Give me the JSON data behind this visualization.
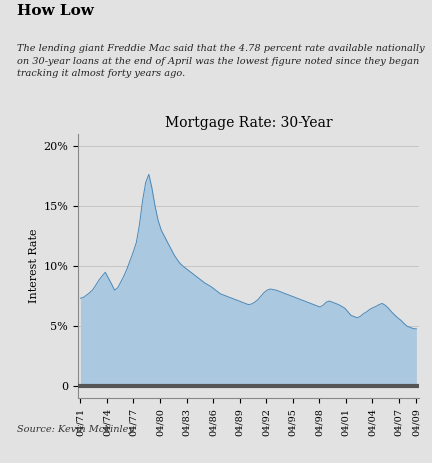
{
  "title": "Mortgage Rate: 30-Year",
  "headline": "How Low",
  "subtitle": "The lending giant Freddie Mac said that the 4.78 percent rate available nationally\non 30-year loans at the end of April was the lowest figure noted since they began\ntracking it almost forty years ago.",
  "source": "Source: Kevin Mckinley",
  "ylabel": "Interest Rate",
  "yticks": [
    0,
    5,
    10,
    15,
    20
  ],
  "ytick_labels": [
    "0",
    "5%",
    "10%",
    "15%",
    "20%"
  ],
  "xtick_labels": [
    "04/71",
    "04/74",
    "04/77",
    "04/80",
    "04/83",
    "04/86",
    "04/89",
    "04/92",
    "04/95",
    "04/98",
    "04/01",
    "04/04",
    "04/07",
    "04/09"
  ],
  "xtick_years": [
    1971,
    1974,
    1977,
    1980,
    1983,
    1986,
    1989,
    1992,
    1995,
    1998,
    2001,
    2004,
    2007,
    2009
  ],
  "background_color": "#e2e2e2",
  "fill_color": "#aac8e0",
  "line_color": "#4a88b8",
  "data": [
    7.33,
    7.41,
    7.6,
    7.8,
    8.05,
    8.45,
    8.86,
    9.19,
    9.5,
    9.01,
    8.52,
    8.0,
    8.21,
    8.7,
    9.2,
    9.8,
    10.5,
    11.2,
    12.0,
    13.5,
    15.5,
    17.0,
    17.66,
    16.5,
    15.0,
    13.8,
    13.0,
    12.5,
    12.0,
    11.5,
    11.0,
    10.6,
    10.24,
    10.0,
    9.8,
    9.6,
    9.4,
    9.2,
    9.0,
    8.8,
    8.6,
    8.45,
    8.3,
    8.1,
    7.9,
    7.7,
    7.6,
    7.5,
    7.4,
    7.3,
    7.2,
    7.1,
    7.0,
    6.9,
    6.8,
    6.85,
    7.0,
    7.2,
    7.5,
    7.8,
    8.0,
    8.1,
    8.05,
    8.0,
    7.9,
    7.8,
    7.7,
    7.6,
    7.5,
    7.4,
    7.3,
    7.2,
    7.1,
    7.0,
    6.9,
    6.8,
    6.7,
    6.6,
    6.75,
    7.0,
    7.1,
    7.0,
    6.9,
    6.8,
    6.65,
    6.5,
    6.2,
    5.9,
    5.8,
    5.7,
    5.83,
    6.05,
    6.2,
    6.4,
    6.54,
    6.65,
    6.8,
    6.9,
    6.74,
    6.5,
    6.2,
    5.94,
    5.7,
    5.5,
    5.23,
    5.0,
    4.9,
    4.8,
    4.78
  ],
  "n_points": 109,
  "data_start_year": 1971,
  "data_end_year": 2009
}
